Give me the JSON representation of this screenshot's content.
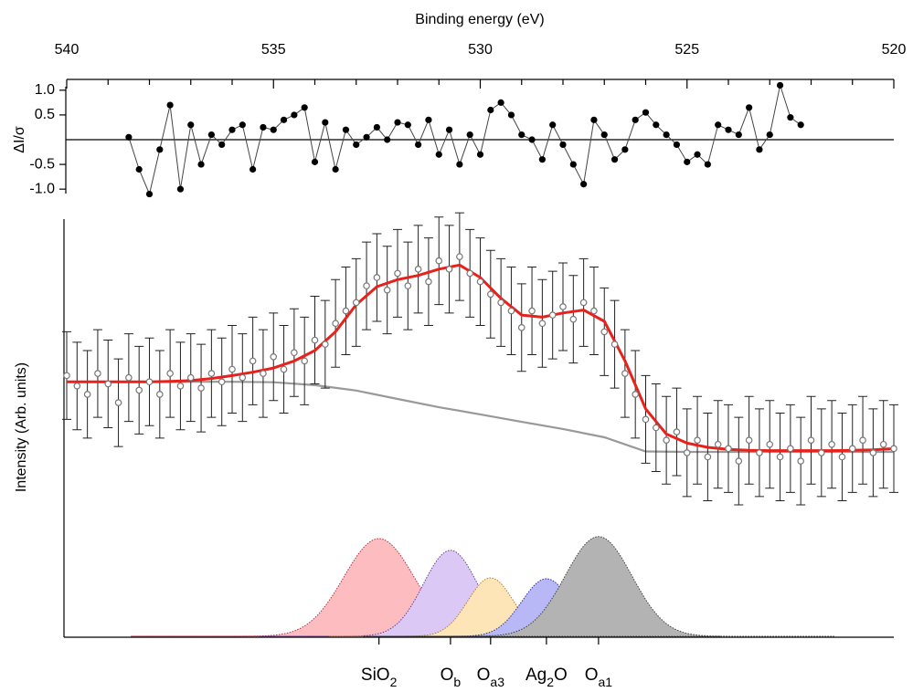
{
  "chart_data": {
    "type": "xps",
    "x_label": "Binding energy (eV)",
    "xlim": [
      540,
      520
    ],
    "xticks": [
      540,
      535,
      530,
      525,
      520
    ],
    "x_minor_ticks": [
      539,
      538,
      537,
      536,
      534,
      533,
      532,
      531,
      529,
      528,
      527,
      526,
      524,
      523,
      522,
      521
    ],
    "residual": {
      "y_label": "ΔI/σ",
      "ylim": [
        -1.2,
        1.2
      ],
      "yticks": [
        {
          "value": 1,
          "label": "1.0"
        },
        0.5,
        -0.5,
        {
          "value": -1,
          "label": "-1.0"
        }
      ],
      "color": "#000000",
      "x": [
        538.5,
        538.25,
        538,
        537.75,
        537.5,
        537.25,
        537,
        536.75,
        536.5,
        536.25,
        536,
        535.75,
        535.5,
        535.25,
        535,
        534.75,
        534.5,
        534.25,
        534,
        533.75,
        533.5,
        533.25,
        533,
        532.75,
        532.5,
        532.25,
        532,
        531.75,
        531.5,
        531.25,
        531,
        530.75,
        530.5,
        530.25,
        530,
        529.75,
        529.5,
        529.25,
        529,
        528.75,
        528.5,
        528.25,
        528,
        527.75,
        527.5,
        527.25,
        527,
        526.75,
        526.5,
        526.25,
        526,
        525.75,
        525.5,
        525.25,
        525,
        524.75,
        524.5,
        524.25,
        524,
        523.75,
        523.5,
        523.25,
        523,
        522.75,
        522.5,
        522.25
      ],
      "values": [
        0.05,
        -0.6,
        -1.1,
        -0.2,
        0.7,
        -1.0,
        0.3,
        -0.5,
        0.1,
        -0.1,
        0.2,
        0.3,
        -0.6,
        0.25,
        0.2,
        0.4,
        0.5,
        0.65,
        -0.45,
        0.35,
        -0.6,
        0.2,
        -0.1,
        0.05,
        0.25,
        0.0,
        0.35,
        0.3,
        -0.1,
        0.4,
        -0.3,
        0.2,
        -0.5,
        0.1,
        -0.3,
        0.6,
        0.75,
        0.5,
        0.1,
        0.0,
        -0.4,
        0.3,
        -0.1,
        -0.5,
        -0.9,
        0.4,
        0.1,
        -0.4,
        -0.2,
        0.4,
        0.55,
        0.3,
        0.1,
        -0.1,
        -0.45,
        -0.3,
        -0.5,
        0.3,
        0.2,
        0.1,
        0.65,
        -0.2,
        0.1,
        1.1,
        0.45,
        0.3
      ]
    },
    "spectrum": {
      "y_label": "Intensity (Arb. units)",
      "ylim": [
        0,
        100
      ],
      "marker_color": "#777777",
      "error": 10.5,
      "x": [
        540,
        539.75,
        539.5,
        539.25,
        539,
        538.75,
        538.5,
        538.25,
        538,
        537.75,
        537.5,
        537.25,
        537,
        536.75,
        536.5,
        536.25,
        536,
        535.75,
        535.5,
        535.25,
        535,
        534.75,
        534.5,
        534.25,
        534,
        533.75,
        533.5,
        533.25,
        533,
        532.75,
        532.5,
        532.25,
        532,
        531.75,
        531.5,
        531.25,
        531,
        530.75,
        530.5,
        530.25,
        530,
        529.75,
        529.5,
        529.25,
        529,
        528.75,
        528.5,
        528.25,
        528,
        527.75,
        527.5,
        527.25,
        527,
        526.75,
        526.5,
        526.25,
        526,
        525.75,
        525.5,
        525.25,
        525,
        524.75,
        524.5,
        524.25,
        524,
        523.75,
        523.5,
        523.25,
        523,
        522.75,
        522.5,
        522.25,
        522,
        521.75,
        521.5,
        521.25,
        521,
        520.75,
        520.5,
        520.25,
        520
      ],
      "values": [
        62.5,
        60,
        58,
        63,
        60.5,
        56,
        62,
        59,
        61,
        58,
        63,
        60,
        62,
        59.5,
        63,
        61,
        64,
        62,
        66,
        63,
        67,
        64,
        68,
        66,
        71,
        70,
        75,
        78,
        80,
        84,
        86,
        83,
        87,
        84,
        88,
        85,
        90,
        88,
        91,
        87,
        85,
        82,
        80,
        78,
        74,
        78,
        75,
        77,
        79,
        76,
        80,
        78,
        73,
        70,
        63,
        58,
        52,
        50,
        47,
        49,
        44,
        47,
        43,
        46,
        45,
        42,
        47,
        44,
        46,
        43,
        45,
        42,
        47,
        44,
        46,
        43,
        45,
        47,
        44,
        46,
        45
      ]
    },
    "fit": {
      "color": "#e8211b",
      "x": [
        540,
        539.5,
        539,
        538.5,
        538,
        537.5,
        537,
        536.5,
        536,
        535.5,
        535,
        534.5,
        534,
        533.5,
        533,
        532.5,
        532,
        531.5,
        531,
        530.5,
        530,
        529.5,
        529,
        528.5,
        528,
        527.5,
        527,
        526.5,
        526,
        525.5,
        525,
        524.5,
        524,
        523.5,
        523,
        522.5,
        522,
        521.5,
        521,
        520.5,
        520
      ],
      "values": [
        61.0,
        61.0,
        61.0,
        61.0,
        61.0,
        61.1,
        61.3,
        61.8,
        62.5,
        63.3,
        64.3,
        66.0,
        68.5,
        73.0,
        79.5,
        83.8,
        85.5,
        86.5,
        88.0,
        89.0,
        86.0,
        81.0,
        77.0,
        76.5,
        77.5,
        78.2,
        75.5,
        66.0,
        54.5,
        48.5,
        46.3,
        45.3,
        44.8,
        44.6,
        44.5,
        44.5,
        44.5,
        44.5,
        44.6,
        44.7,
        45.0
      ]
    },
    "background": {
      "color": "#999999",
      "x": [
        540,
        539,
        538,
        537,
        536,
        535,
        534,
        533,
        532,
        531,
        530,
        529,
        528,
        527,
        526,
        525,
        524,
        523,
        522,
        521,
        520
      ],
      "values": [
        61.0,
        61.0,
        61.0,
        61.0,
        61.0,
        60.9,
        60.2,
        58.9,
        56.9,
        54.9,
        53.2,
        51.4,
        49.7,
        47.7,
        44.3,
        44.2,
        44.2,
        44.2,
        44.2,
        44.2,
        44.2
      ]
    },
    "components": [
      {
        "label": [
          "SiO",
          "2"
        ],
        "color": "#fdbcc0",
        "edge": "#b03040",
        "center": 532.45,
        "height": 23.4,
        "fwhm": 2.0
      },
      {
        "label": [
          "O",
          "b"
        ],
        "color": "#dcc8f5",
        "edge": "#6040a0",
        "center": 530.72,
        "height": 20.6,
        "fwhm": 1.55
      },
      {
        "label": [
          "O",
          "a3"
        ],
        "color": "#fde5b8",
        "edge": "#b08030",
        "center": 529.75,
        "height": 14.0,
        "fwhm": 1.3
      },
      {
        "label": [
          "Ag",
          "2",
          "O"
        ],
        "color": "#b8b8f6",
        "edge": "#3030a0",
        "center": 528.4,
        "height": 13.8,
        "fwhm": 1.4
      },
      {
        "label": [
          "O",
          "a1"
        ],
        "color": "#b3b3b3",
        "edge": "#404040",
        "center": 527.14,
        "height": 23.9,
        "fwhm": 1.9
      }
    ]
  }
}
